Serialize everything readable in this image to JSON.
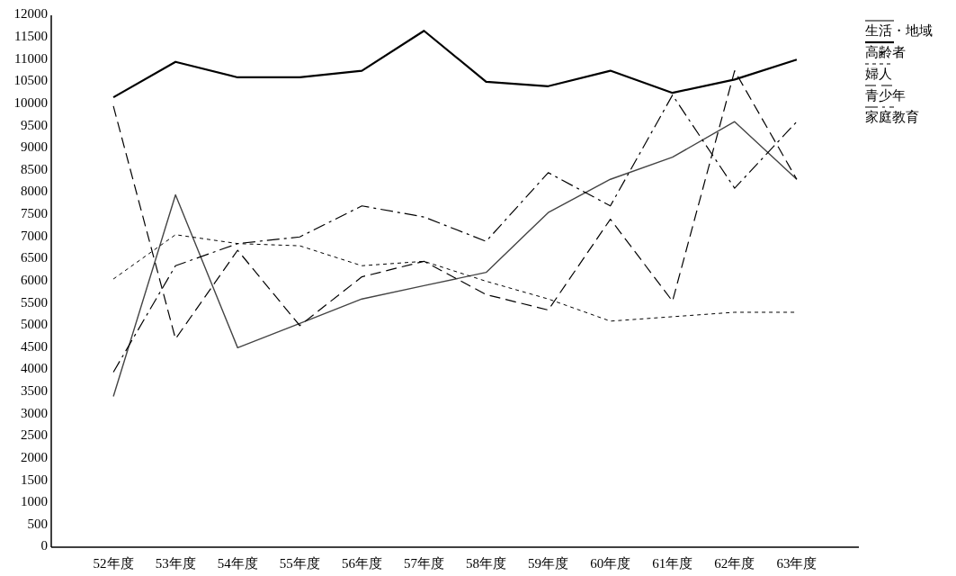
{
  "chart_data": {
    "type": "line",
    "categories": [
      "52年度",
      "53年度",
      "54年度",
      "55年度",
      "56年度",
      "57年度",
      "58年度",
      "59年度",
      "60年度",
      "61年度",
      "62年度",
      "63年度"
    ],
    "series": [
      {
        "name": "生活・地域",
        "color": "#444444",
        "line_style": "solid",
        "values": [
          3400,
          7950,
          4500,
          5050,
          5600,
          5900,
          6200,
          7550,
          8300,
          8800,
          9600,
          8300
        ]
      },
      {
        "name": "高齢者",
        "color": "#000000",
        "line_style": "solid",
        "values": [
          10150,
          10950,
          10600,
          10600,
          10750,
          11650,
          10500,
          10400,
          10750,
          10250,
          10550,
          11000
        ]
      },
      {
        "name": "婦人",
        "color": "#000000",
        "line_style": "dotted",
        "values": [
          6050,
          7050,
          6850,
          6800,
          6350,
          6450,
          6000,
          5600,
          5100,
          5200,
          5300,
          5300
        ]
      },
      {
        "name": "青少年",
        "color": "#000000",
        "line_style": "dashed",
        "values": [
          9950,
          4700,
          6700,
          5000,
          6100,
          6450,
          5700,
          5350,
          7400,
          5550,
          10750,
          8300
        ]
      },
      {
        "name": "家庭教育",
        "color": "#000000",
        "line_style": "dashdot",
        "values": [
          3950,
          6350,
          6850,
          7000,
          7700,
          7450,
          6900,
          8450,
          7700,
          10200,
          8100,
          9600
        ]
      }
    ],
    "ylim": [
      0,
      12000
    ],
    "yticks": [
      0,
      500,
      1000,
      1500,
      2000,
      2500,
      3000,
      3500,
      4000,
      4500,
      5000,
      5500,
      6000,
      6500,
      7000,
      7500,
      8000,
      8500,
      9000,
      9500,
      10000,
      10500,
      11000,
      11500,
      12000
    ],
    "grid": false,
    "legend": "top right"
  }
}
